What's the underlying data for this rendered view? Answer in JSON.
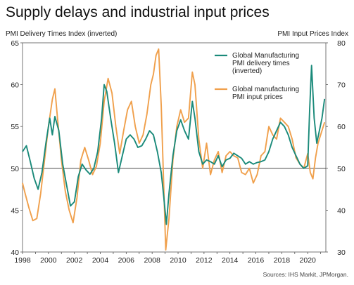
{
  "chart_data": {
    "type": "line",
    "title": "Supply delays and industrial input prices",
    "left_axis": {
      "label": "PMI Delivery Times Index (inverted)",
      "ylim": [
        40,
        65
      ],
      "ticks": [
        40,
        45,
        50,
        55,
        60,
        65
      ]
    },
    "right_axis": {
      "label": "PMI Input Prices Index",
      "ylim": [
        30,
        80
      ],
      "ticks": [
        30,
        40,
        50,
        60,
        70,
        80
      ]
    },
    "x_axis": {
      "xlim": [
        1998,
        2021.4
      ],
      "ticks": [
        "1998",
        "2000",
        "2002",
        "2004",
        "2006",
        "2008",
        "2010",
        "2012",
        "2014",
        "2016",
        "2018",
        "2020"
      ]
    },
    "reference_line": {
      "axis": "left",
      "value": 50
    },
    "legend": {
      "placement": "top-right"
    },
    "source": "Sources: IHS Markit, JPMorgan.",
    "series": [
      {
        "name": "Global Manufacturing PMI delivery times (inverted)",
        "legend_lines": [
          "Global Manufacturing",
          "PMI delivery times",
          "(inverted)"
        ],
        "axis": "left",
        "color": "#1a8a7a",
        "points": [
          [
            1998.0,
            52.0
          ],
          [
            1998.3,
            52.7
          ],
          [
            1998.6,
            50.8
          ],
          [
            1998.9,
            48.8
          ],
          [
            1999.2,
            47.5
          ],
          [
            1999.5,
            49.5
          ],
          [
            1999.8,
            53.0
          ],
          [
            2000.1,
            56.0
          ],
          [
            2000.3,
            54.0
          ],
          [
            2000.5,
            56.2
          ],
          [
            2000.8,
            54.5
          ],
          [
            2001.1,
            50.5
          ],
          [
            2001.4,
            48.0
          ],
          [
            2001.7,
            45.5
          ],
          [
            2002.0,
            46.0
          ],
          [
            2002.3,
            49.0
          ],
          [
            2002.6,
            50.5
          ],
          [
            2002.9,
            49.8
          ],
          [
            2003.2,
            49.3
          ],
          [
            2003.5,
            50.0
          ],
          [
            2003.8,
            52.0
          ],
          [
            2004.1,
            56.0
          ],
          [
            2004.3,
            60.0
          ],
          [
            2004.5,
            59.2
          ],
          [
            2004.8,
            56.0
          ],
          [
            2005.1,
            53.0
          ],
          [
            2005.4,
            49.5
          ],
          [
            2005.7,
            51.5
          ],
          [
            2006.0,
            53.5
          ],
          [
            2006.3,
            54.0
          ],
          [
            2006.6,
            53.5
          ],
          [
            2006.9,
            52.5
          ],
          [
            2007.2,
            52.7
          ],
          [
            2007.5,
            53.5
          ],
          [
            2007.8,
            54.5
          ],
          [
            2008.1,
            54.0
          ],
          [
            2008.4,
            52.0
          ],
          [
            2008.7,
            49.5
          ],
          [
            2008.9,
            46.5
          ],
          [
            2009.1,
            43.3
          ],
          [
            2009.3,
            47.0
          ],
          [
            2009.6,
            51.5
          ],
          [
            2009.9,
            54.5
          ],
          [
            2010.2,
            55.8
          ],
          [
            2010.5,
            54.5
          ],
          [
            2010.8,
            53.5
          ],
          [
            2011.1,
            58.0
          ],
          [
            2011.3,
            56.0
          ],
          [
            2011.6,
            52.0
          ],
          [
            2011.9,
            50.5
          ],
          [
            2012.2,
            51.0
          ],
          [
            2012.5,
            50.8
          ],
          [
            2012.8,
            50.5
          ],
          [
            2013.1,
            51.5
          ],
          [
            2013.4,
            50.2
          ],
          [
            2013.7,
            51.0
          ],
          [
            2014.0,
            51.2
          ],
          [
            2014.3,
            51.8
          ],
          [
            2014.6,
            51.5
          ],
          [
            2014.9,
            51.2
          ],
          [
            2015.2,
            50.5
          ],
          [
            2015.5,
            50.8
          ],
          [
            2015.8,
            50.5
          ],
          [
            2016.1,
            50.7
          ],
          [
            2016.4,
            50.8
          ],
          [
            2016.7,
            51.0
          ],
          [
            2017.0,
            52.0
          ],
          [
            2017.3,
            53.5
          ],
          [
            2017.6,
            54.5
          ],
          [
            2017.9,
            55.5
          ],
          [
            2018.2,
            55.0
          ],
          [
            2018.5,
            54.0
          ],
          [
            2018.8,
            52.5
          ],
          [
            2019.1,
            51.5
          ],
          [
            2019.4,
            50.5
          ],
          [
            2019.7,
            50.0
          ],
          [
            2020.0,
            50.3
          ],
          [
            2020.15,
            57.0
          ],
          [
            2020.3,
            62.3
          ],
          [
            2020.5,
            56.0
          ],
          [
            2020.7,
            53.0
          ],
          [
            2020.9,
            54.5
          ],
          [
            2021.1,
            56.0
          ],
          [
            2021.3,
            58.3
          ]
        ]
      },
      {
        "name": "Global manufacturing PMI input prices",
        "legend_lines": [
          "Global manufacturing",
          "PMI input prices"
        ],
        "axis": "right",
        "color": "#f0a04c",
        "points": [
          [
            1998.0,
            46.5
          ],
          [
            1998.2,
            44.0
          ],
          [
            1998.5,
            40.5
          ],
          [
            1998.8,
            37.5
          ],
          [
            1999.1,
            38.0
          ],
          [
            1999.4,
            44.0
          ],
          [
            1999.7,
            52.0
          ],
          [
            2000.0,
            60.0
          ],
          [
            2000.3,
            66.5
          ],
          [
            2000.5,
            69.0
          ],
          [
            2000.7,
            62.0
          ],
          [
            2001.0,
            52.0
          ],
          [
            2001.3,
            44.5
          ],
          [
            2001.6,
            40.0
          ],
          [
            2001.9,
            37.0
          ],
          [
            2002.2,
            43.0
          ],
          [
            2002.5,
            52.0
          ],
          [
            2002.8,
            55.0
          ],
          [
            2003.1,
            52.0
          ],
          [
            2003.4,
            48.5
          ],
          [
            2003.7,
            50.5
          ],
          [
            2004.0,
            56.0
          ],
          [
            2004.3,
            66.0
          ],
          [
            2004.6,
            71.5
          ],
          [
            2004.9,
            68.0
          ],
          [
            2005.2,
            60.0
          ],
          [
            2005.5,
            53.5
          ],
          [
            2005.8,
            59.0
          ],
          [
            2006.1,
            64.0
          ],
          [
            2006.4,
            66.0
          ],
          [
            2006.7,
            60.0
          ],
          [
            2007.0,
            56.0
          ],
          [
            2007.3,
            58.0
          ],
          [
            2007.6,
            63.0
          ],
          [
            2007.9,
            70.0
          ],
          [
            2008.1,
            72.5
          ],
          [
            2008.3,
            77.0
          ],
          [
            2008.5,
            78.5
          ],
          [
            2008.7,
            65.0
          ],
          [
            2008.9,
            45.0
          ],
          [
            2009.05,
            30.5
          ],
          [
            2009.3,
            38.0
          ],
          [
            2009.6,
            52.0
          ],
          [
            2009.9,
            60.0
          ],
          [
            2010.2,
            64.0
          ],
          [
            2010.5,
            61.0
          ],
          [
            2010.8,
            62.0
          ],
          [
            2011.1,
            73.0
          ],
          [
            2011.3,
            70.0
          ],
          [
            2011.6,
            57.0
          ],
          [
            2011.9,
            50.0
          ],
          [
            2012.2,
            56.0
          ],
          [
            2012.5,
            48.5
          ],
          [
            2012.8,
            52.0
          ],
          [
            2013.1,
            54.0
          ],
          [
            2013.4,
            49.0
          ],
          [
            2013.7,
            53.0
          ],
          [
            2014.0,
            54.0
          ],
          [
            2014.3,
            53.0
          ],
          [
            2014.6,
            52.5
          ],
          [
            2014.9,
            49.0
          ],
          [
            2015.2,
            48.5
          ],
          [
            2015.5,
            50.0
          ],
          [
            2015.8,
            46.5
          ],
          [
            2016.1,
            48.5
          ],
          [
            2016.4,
            53.0
          ],
          [
            2016.7,
            54.0
          ],
          [
            2017.0,
            60.0
          ],
          [
            2017.3,
            58.0
          ],
          [
            2017.6,
            57.0
          ],
          [
            2017.9,
            62.0
          ],
          [
            2018.2,
            61.0
          ],
          [
            2018.5,
            60.0
          ],
          [
            2018.8,
            57.0
          ],
          [
            2019.1,
            52.5
          ],
          [
            2019.4,
            51.0
          ],
          [
            2019.7,
            50.0
          ],
          [
            2020.0,
            53.5
          ],
          [
            2020.2,
            49.0
          ],
          [
            2020.4,
            47.5
          ],
          [
            2020.6,
            52.5
          ],
          [
            2020.8,
            56.0
          ],
          [
            2021.0,
            58.0
          ],
          [
            2021.3,
            61.0
          ]
        ]
      }
    ]
  }
}
